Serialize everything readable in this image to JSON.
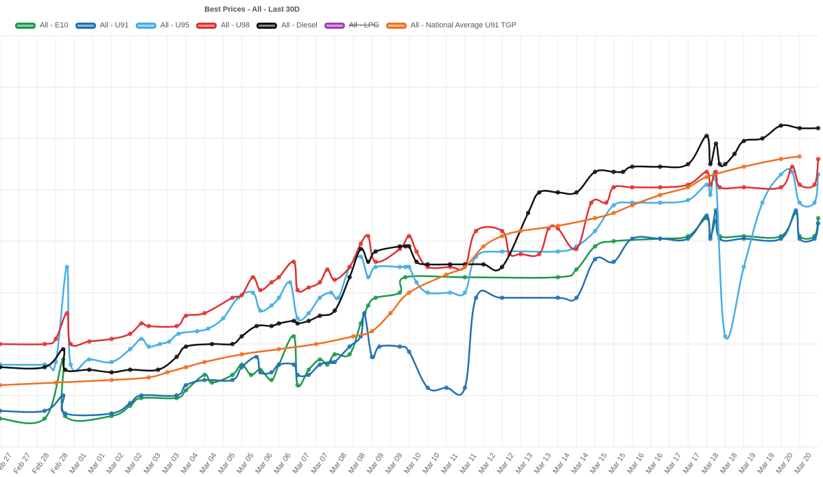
{
  "chart_data": {
    "type": "line",
    "title": "Best Prices - All - Last 30D",
    "legend_position": "top",
    "grid": true,
    "x_ticks": [
      "Feb 27",
      "Feb 27",
      "Feb 28",
      "Feb 28",
      "Mar 01",
      "Mar 01",
      "Mar 02",
      "Mar 02",
      "Mar 03",
      "Mar 03",
      "Mar 04",
      "Mar 04",
      "Mar 05",
      "Mar 05",
      "Mar 06",
      "Mar 06",
      "Mar 07",
      "Mar 07",
      "Mar 08",
      "Mar 08",
      "Mar 09",
      "Mar 09",
      "Mar 10",
      "Mar 10",
      "Mar 11",
      "Mar 11",
      "Mar 12",
      "Mar 12",
      "Mar 13",
      "Mar 13",
      "Mar 14",
      "Mar 14",
      "Mar 15",
      "Mar 15",
      "Mar 16",
      "Mar 16",
      "Mar 17",
      "Mar 17",
      "Mar 18",
      "Mar 18",
      "Mar 19",
      "Mar 19",
      "Mar 20",
      "Mar 20"
    ],
    "x_range": [
      0,
      44
    ],
    "y_range": [
      0,
      8
    ],
    "series": [
      {
        "name": "All - E10",
        "color": "#1a9a4a",
        "hidden": false,
        "points": [
          [
            0,
            0.55
          ],
          [
            2.4,
            0.55
          ],
          [
            3.4,
            1.7
          ],
          [
            3.5,
            0.6
          ],
          [
            6,
            0.6
          ],
          [
            7,
            0.8
          ],
          [
            7.6,
            0.95
          ],
          [
            9.5,
            0.95
          ],
          [
            10,
            1.1
          ],
          [
            11,
            1.4
          ],
          [
            11.4,
            1.25
          ],
          [
            12.5,
            1.4
          ],
          [
            13,
            1.6
          ],
          [
            13.5,
            1.4
          ],
          [
            14,
            1.5
          ],
          [
            14.6,
            1.3
          ],
          [
            15,
            1.6
          ],
          [
            15.8,
            2.15
          ],
          [
            16,
            1.2
          ],
          [
            16.6,
            1.5
          ],
          [
            17.2,
            1.7
          ],
          [
            17.6,
            1.6
          ],
          [
            18,
            1.8
          ],
          [
            18.8,
            1.8
          ],
          [
            19.4,
            2.4
          ],
          [
            19.8,
            2.75
          ],
          [
            20.2,
            2.9
          ],
          [
            21.5,
            3.0
          ],
          [
            21.8,
            3.3
          ],
          [
            25,
            3.3
          ],
          [
            30,
            3.3
          ],
          [
            31,
            3.45
          ],
          [
            32,
            3.9
          ],
          [
            33,
            4.0
          ],
          [
            35.5,
            4.05
          ],
          [
            37,
            4.1
          ],
          [
            38,
            4.45
          ],
          [
            38.2,
            4.1
          ],
          [
            38.5,
            4.4
          ],
          [
            38.7,
            4.1
          ],
          [
            40,
            4.1
          ],
          [
            42,
            4.1
          ],
          [
            42.8,
            4.55
          ],
          [
            43,
            4.1
          ],
          [
            43.8,
            4.1
          ],
          [
            44,
            4.45
          ]
        ]
      },
      {
        "name": "All - U91",
        "color": "#1f6fb4",
        "hidden": false,
        "points": [
          [
            0,
            0.7
          ],
          [
            2.4,
            0.7
          ],
          [
            3.4,
            1.0
          ],
          [
            3.5,
            0.65
          ],
          [
            6,
            0.65
          ],
          [
            7,
            0.85
          ],
          [
            7.6,
            1.0
          ],
          [
            9.5,
            1.0
          ],
          [
            10,
            1.2
          ],
          [
            11,
            1.3
          ],
          [
            12.5,
            1.3
          ],
          [
            13,
            1.55
          ],
          [
            13.8,
            1.75
          ],
          [
            14,
            1.45
          ],
          [
            14.6,
            1.45
          ],
          [
            15,
            1.6
          ],
          [
            15.8,
            1.6
          ],
          [
            16,
            1.4
          ],
          [
            16.6,
            1.4
          ],
          [
            17.2,
            1.6
          ],
          [
            17.8,
            1.65
          ],
          [
            18,
            1.65
          ],
          [
            18.8,
            1.95
          ],
          [
            19.4,
            2.15
          ],
          [
            19.6,
            2.6
          ],
          [
            20,
            1.75
          ],
          [
            20.4,
            1.95
          ],
          [
            21.5,
            1.95
          ],
          [
            22,
            1.85
          ],
          [
            23,
            1.15
          ],
          [
            24,
            1.15
          ],
          [
            25,
            1.15
          ],
          [
            25.6,
            2.9
          ],
          [
            27,
            2.9
          ],
          [
            30,
            2.9
          ],
          [
            31,
            2.9
          ],
          [
            32,
            3.65
          ],
          [
            33,
            3.6
          ],
          [
            34,
            4.05
          ],
          [
            35.5,
            4.05
          ],
          [
            37,
            4.05
          ],
          [
            38,
            4.5
          ],
          [
            38.2,
            4.05
          ],
          [
            38.5,
            4.6
          ],
          [
            38.7,
            4.05
          ],
          [
            40,
            4.05
          ],
          [
            42,
            4.05
          ],
          [
            42.8,
            4.6
          ],
          [
            43,
            4.05
          ],
          [
            43.8,
            4.05
          ],
          [
            44,
            4.35
          ]
        ]
      },
      {
        "name": "All - U95",
        "color": "#45aee3",
        "hidden": false,
        "points": [
          [
            0,
            1.6
          ],
          [
            2.4,
            1.6
          ],
          [
            3.0,
            1.65
          ],
          [
            3.6,
            3.5
          ],
          [
            3.8,
            1.6
          ],
          [
            4.8,
            1.7
          ],
          [
            6,
            1.65
          ],
          [
            7,
            1.9
          ],
          [
            7.6,
            2.1
          ],
          [
            8,
            1.95
          ],
          [
            8.6,
            2.0
          ],
          [
            9.1,
            2.05
          ],
          [
            9.6,
            2.2
          ],
          [
            10.6,
            2.25
          ],
          [
            11.2,
            2.3
          ],
          [
            12,
            2.5
          ],
          [
            12.8,
            2.9
          ],
          [
            13.6,
            3.0
          ],
          [
            14,
            2.65
          ],
          [
            14.6,
            2.75
          ],
          [
            15,
            2.9
          ],
          [
            15.6,
            3.2
          ],
          [
            16,
            2.5
          ],
          [
            16.6,
            2.6
          ],
          [
            17.2,
            2.9
          ],
          [
            17.8,
            3.0
          ],
          [
            18.2,
            2.9
          ],
          [
            18.8,
            3.5
          ],
          [
            19.4,
            3.7
          ],
          [
            19.8,
            3.3
          ],
          [
            20.2,
            3.5
          ],
          [
            21.5,
            3.5
          ],
          [
            21.8,
            3.5
          ],
          [
            22,
            3.5
          ],
          [
            22.4,
            3.2
          ],
          [
            23,
            3.0
          ],
          [
            24.2,
            3.0
          ],
          [
            25,
            3.0
          ],
          [
            25.6,
            3.7
          ],
          [
            27,
            3.8
          ],
          [
            30,
            3.8
          ],
          [
            31,
            3.9
          ],
          [
            32,
            4.2
          ],
          [
            33,
            4.7
          ],
          [
            34,
            4.75
          ],
          [
            35.5,
            4.75
          ],
          [
            37,
            4.8
          ],
          [
            38,
            5.1
          ],
          [
            38.2,
            4.9
          ],
          [
            38.5,
            5.2
          ],
          [
            39,
            2.15
          ],
          [
            40,
            3.5
          ],
          [
            41,
            4.75
          ],
          [
            42,
            5.3
          ],
          [
            42.6,
            5.35
          ],
          [
            43,
            4.75
          ],
          [
            43.8,
            4.75
          ],
          [
            44,
            5.3
          ]
        ]
      },
      {
        "name": "All - U98",
        "color": "#e03030",
        "hidden": false,
        "points": [
          [
            0,
            2.0
          ],
          [
            2.4,
            2.0
          ],
          [
            3.0,
            2.1
          ],
          [
            3.6,
            2.6
          ],
          [
            3.8,
            2.0
          ],
          [
            4.8,
            2.05
          ],
          [
            6,
            2.1
          ],
          [
            7,
            2.2
          ],
          [
            7.6,
            2.4
          ],
          [
            8,
            2.35
          ],
          [
            9.5,
            2.35
          ],
          [
            10,
            2.55
          ],
          [
            11,
            2.6
          ],
          [
            12.5,
            2.9
          ],
          [
            13,
            2.95
          ],
          [
            13.6,
            3.3
          ],
          [
            14,
            3.05
          ],
          [
            14.6,
            3.2
          ],
          [
            15,
            3.3
          ],
          [
            15.8,
            3.6
          ],
          [
            16,
            3.05
          ],
          [
            16.6,
            3.1
          ],
          [
            17.2,
            3.2
          ],
          [
            17.6,
            3.45
          ],
          [
            18,
            3.25
          ],
          [
            18.8,
            3.5
          ],
          [
            19.4,
            3.95
          ],
          [
            19.8,
            4.1
          ],
          [
            20.2,
            3.6
          ],
          [
            21.5,
            3.85
          ],
          [
            22,
            4.1
          ],
          [
            22.4,
            3.8
          ],
          [
            23,
            3.5
          ],
          [
            24.2,
            3.5
          ],
          [
            25,
            3.5
          ],
          [
            25.6,
            4.2
          ],
          [
            27,
            4.2
          ],
          [
            27.4,
            3.75
          ],
          [
            28,
            3.75
          ],
          [
            29,
            3.75
          ],
          [
            29.5,
            4.25
          ],
          [
            30,
            4.25
          ],
          [
            31,
            3.85
          ],
          [
            31.8,
            4.75
          ],
          [
            32.6,
            4.75
          ],
          [
            33,
            5.05
          ],
          [
            34,
            5.05
          ],
          [
            35.5,
            5.05
          ],
          [
            37,
            5.1
          ],
          [
            38,
            5.35
          ],
          [
            38.2,
            5.1
          ],
          [
            38.5,
            5.35
          ],
          [
            38.7,
            5.05
          ],
          [
            40,
            5.05
          ],
          [
            42,
            5.05
          ],
          [
            42.6,
            5.45
          ],
          [
            43,
            5.1
          ],
          [
            43.8,
            5.1
          ],
          [
            44,
            5.6
          ]
        ]
      },
      {
        "name": "All - Diesel",
        "color": "#111111",
        "hidden": false,
        "points": [
          [
            0,
            1.55
          ],
          [
            2.4,
            1.55
          ],
          [
            3.4,
            1.9
          ],
          [
            3.5,
            1.5
          ],
          [
            4.8,
            1.5
          ],
          [
            6,
            1.45
          ],
          [
            7,
            1.5
          ],
          [
            8.5,
            1.5
          ],
          [
            9.5,
            1.75
          ],
          [
            10,
            1.95
          ],
          [
            11.4,
            2.0
          ],
          [
            12.5,
            2.0
          ],
          [
            13,
            2.15
          ],
          [
            13.8,
            2.35
          ],
          [
            14.6,
            2.35
          ],
          [
            15,
            2.4
          ],
          [
            15.8,
            2.45
          ],
          [
            16,
            2.4
          ],
          [
            16.6,
            2.45
          ],
          [
            17.2,
            2.55
          ],
          [
            18,
            2.65
          ],
          [
            18.8,
            3.3
          ],
          [
            19.4,
            3.85
          ],
          [
            19.8,
            3.6
          ],
          [
            20.2,
            3.8
          ],
          [
            21.5,
            3.9
          ],
          [
            21.8,
            3.9
          ],
          [
            22,
            3.9
          ],
          [
            22.4,
            3.6
          ],
          [
            23,
            3.55
          ],
          [
            24.2,
            3.55
          ],
          [
            25,
            3.55
          ],
          [
            26,
            3.55
          ],
          [
            27,
            3.5
          ],
          [
            28.4,
            4.55
          ],
          [
            29,
            4.95
          ],
          [
            30,
            4.95
          ],
          [
            31,
            4.95
          ],
          [
            32,
            5.35
          ],
          [
            33,
            5.35
          ],
          [
            33.5,
            5.35
          ],
          [
            34,
            5.45
          ],
          [
            35.5,
            5.45
          ],
          [
            37,
            5.5
          ],
          [
            38,
            6.05
          ],
          [
            38.2,
            5.5
          ],
          [
            38.5,
            5.9
          ],
          [
            38.7,
            5.5
          ],
          [
            39,
            5.5
          ],
          [
            39.5,
            5.7
          ],
          [
            40,
            5.95
          ],
          [
            41,
            6.0
          ],
          [
            42,
            6.25
          ],
          [
            43,
            6.2
          ],
          [
            44,
            6.2
          ]
        ]
      },
      {
        "name": "All - LPG",
        "color": "#a040b0",
        "hidden": true,
        "points": []
      },
      {
        "name": "All - National Average U91 TGP",
        "color": "#f07020",
        "hidden": false,
        "points": [
          [
            0,
            1.2
          ],
          [
            3,
            1.25
          ],
          [
            6,
            1.3
          ],
          [
            8,
            1.35
          ],
          [
            9,
            1.45
          ],
          [
            10,
            1.55
          ],
          [
            11,
            1.65
          ],
          [
            13,
            1.8
          ],
          [
            15,
            1.9
          ],
          [
            17,
            2.0
          ],
          [
            19,
            2.15
          ],
          [
            20,
            2.25
          ],
          [
            21,
            2.6
          ],
          [
            22,
            3.0
          ],
          [
            24,
            3.35
          ],
          [
            25,
            3.5
          ],
          [
            26,
            3.9
          ],
          [
            27,
            4.1
          ],
          [
            28,
            4.2
          ],
          [
            30,
            4.3
          ],
          [
            32,
            4.45
          ],
          [
            33,
            4.55
          ],
          [
            34,
            4.7
          ],
          [
            35.5,
            4.9
          ],
          [
            37,
            5.05
          ],
          [
            38,
            5.25
          ],
          [
            40,
            5.45
          ],
          [
            42,
            5.6
          ],
          [
            43,
            5.65
          ]
        ]
      }
    ]
  }
}
